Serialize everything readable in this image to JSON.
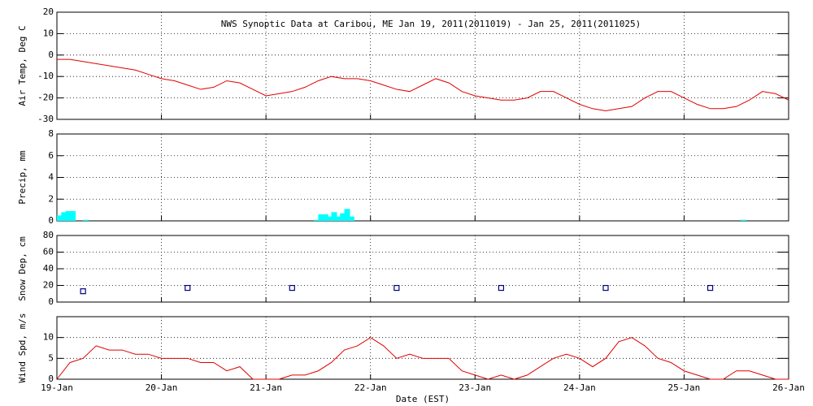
{
  "chart_data": [
    {
      "type": "line",
      "title": "NWS Synoptic Data at Caribou, ME   Jan 19, 2011(2011019) - Jan 25, 2011(2011025)",
      "y_label": "Air Temp, Deg C",
      "color": "#e00000",
      "grid": true,
      "xlim": [
        0,
        168
      ],
      "ylim": [
        -30,
        20
      ],
      "yticks": [
        -30,
        -20,
        -10,
        0,
        10,
        20
      ],
      "x": [
        0,
        3,
        6,
        9,
        12,
        15,
        18,
        21,
        24,
        27,
        30,
        33,
        36,
        39,
        42,
        45,
        48,
        51,
        54,
        57,
        60,
        63,
        66,
        69,
        72,
        75,
        78,
        81,
        84,
        87,
        90,
        93,
        96,
        99,
        102,
        105,
        108,
        111,
        114,
        117,
        120,
        123,
        126,
        129,
        132,
        135,
        138,
        141,
        144,
        147,
        150,
        153,
        156,
        159,
        162,
        165,
        168
      ],
      "values": [
        -2,
        -2,
        -3,
        -4,
        -5,
        -6,
        -7,
        -9,
        -11,
        -12,
        -14,
        -16,
        -15,
        -12,
        -13,
        -16,
        -19,
        -18,
        -17,
        -15,
        -12,
        -10,
        -11,
        -11,
        -12,
        -14,
        -16,
        -17,
        -14,
        -11,
        -13,
        -17,
        -19,
        -20,
        -21,
        -21,
        -20,
        -17,
        -17,
        -20,
        -23,
        -25,
        -26,
        -25,
        -24,
        -20,
        -17,
        -17,
        -20,
        -23,
        -25,
        -25,
        -24,
        -21,
        -17,
        -18,
        -21
      ]
    },
    {
      "type": "bar",
      "y_label": "Precip, mm",
      "color": "#00ffff",
      "grid": true,
      "xlim": [
        0,
        168
      ],
      "ylim": [
        0,
        8
      ],
      "yticks": [
        0,
        2,
        4,
        6,
        8
      ],
      "x": [
        0,
        1,
        2,
        3,
        6,
        59,
        60,
        61,
        62,
        63,
        64,
        65,
        66,
        67,
        157
      ],
      "values": [
        0.5,
        0.8,
        0.9,
        0.9,
        0.1,
        0.1,
        0.6,
        0.6,
        0.4,
        0.8,
        0.4,
        0.7,
        1.1,
        0.4,
        0.1
      ]
    },
    {
      "type": "scatter",
      "y_label": "Snow Dep, cm",
      "color": "#000080",
      "grid": true,
      "xlim": [
        0,
        168
      ],
      "ylim": [
        0,
        80
      ],
      "yticks": [
        0,
        20,
        40,
        60,
        80
      ],
      "x": [
        6,
        30,
        54,
        78,
        102,
        126,
        150
      ],
      "values": [
        13,
        17,
        17,
        17,
        17,
        17,
        17
      ]
    },
    {
      "type": "line",
      "y_label": "Wind Spd, m/s",
      "x_label": "Date (EST)",
      "color": "#e00000",
      "grid": true,
      "xlim": [
        0,
        168
      ],
      "ylim": [
        0,
        15
      ],
      "yticks": [
        0,
        5,
        10
      ],
      "xticks": [
        {
          "value": 0,
          "label": "19-Jan"
        },
        {
          "value": 24,
          "label": "20-Jan"
        },
        {
          "value": 48,
          "label": "21-Jan"
        },
        {
          "value": 72,
          "label": "22-Jan"
        },
        {
          "value": 96,
          "label": "23-Jan"
        },
        {
          "value": 120,
          "label": "24-Jan"
        },
        {
          "value": 144,
          "label": "25-Jan"
        },
        {
          "value": 168,
          "label": "26-Jan"
        }
      ],
      "x": [
        0,
        3,
        6,
        9,
        12,
        15,
        18,
        21,
        24,
        27,
        30,
        33,
        36,
        39,
        42,
        45,
        48,
        51,
        54,
        57,
        60,
        63,
        66,
        69,
        72,
        75,
        78,
        81,
        84,
        87,
        90,
        93,
        96,
        99,
        102,
        105,
        108,
        111,
        114,
        117,
        120,
        123,
        126,
        129,
        132,
        135,
        138,
        141,
        144,
        147,
        150,
        153,
        156,
        159,
        162,
        165,
        168
      ],
      "values": [
        0,
        4,
        5,
        8,
        7,
        7,
        6,
        6,
        5,
        5,
        5,
        4,
        4,
        2,
        3,
        0,
        0,
        0,
        1,
        1,
        2,
        4,
        7,
        8,
        10,
        8,
        5,
        6,
        5,
        5,
        5,
        2,
        1,
        0,
        1,
        0,
        1,
        3,
        5,
        6,
        5,
        3,
        5,
        9,
        10,
        8,
        5,
        4,
        2,
        1,
        0,
        0,
        2,
        2,
        1,
        0,
        0
      ]
    }
  ]
}
